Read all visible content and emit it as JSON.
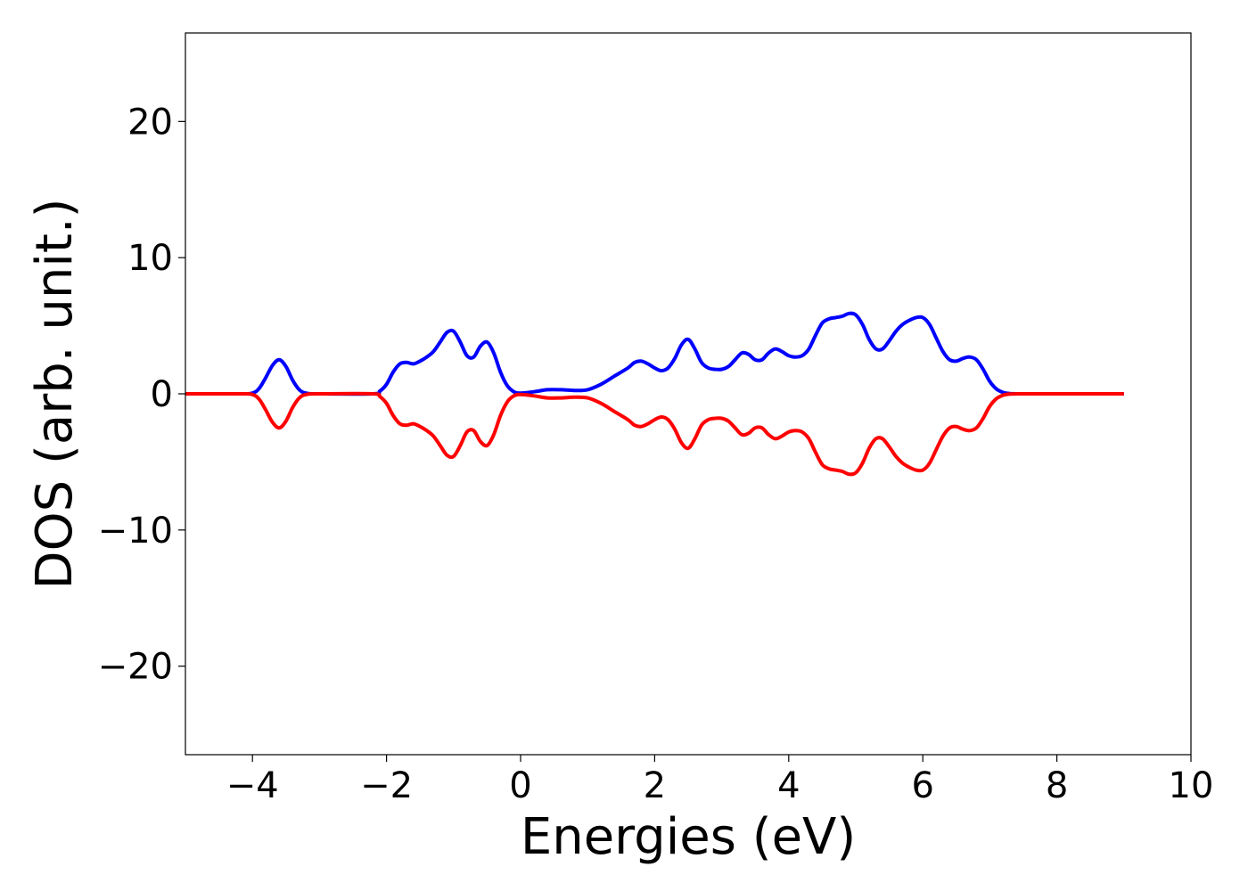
{
  "chart_data": {
    "type": "line",
    "title": "",
    "xlabel": "Energies (eV)",
    "ylabel": "DOS (arb. unit.)",
    "xlim": [
      -5,
      10
    ],
    "ylim": [
      -26.5,
      26.5
    ],
    "xticks": [
      -4,
      -2,
      0,
      2,
      4,
      6,
      8,
      10
    ],
    "yticks": [
      -20,
      -10,
      0,
      10,
      20
    ],
    "xtick_labels": [
      "−4",
      "−2",
      "0",
      "2",
      "4",
      "6",
      "8",
      "10"
    ],
    "ytick_labels": [
      "−20",
      "−10",
      "0",
      "10",
      "20"
    ],
    "grid": false,
    "legend": "none",
    "series": [
      {
        "color": "#0000ff",
        "x": [
          -5.0,
          -4.2,
          -4.0,
          -3.9,
          -3.8,
          -3.7,
          -3.6,
          -3.5,
          -3.4,
          -3.3,
          -3.2,
          -3.0,
          -2.2,
          -2.1,
          -2.0,
          -1.9,
          -1.8,
          -1.7,
          -1.6,
          -1.5,
          -1.4,
          -1.3,
          -1.2,
          -1.1,
          -1.0,
          -0.9,
          -0.8,
          -0.7,
          -0.6,
          -0.5,
          -0.4,
          -0.3,
          -0.2,
          -0.1,
          0.0,
          0.2,
          0.4,
          0.6,
          0.8,
          1.0,
          1.2,
          1.4,
          1.6,
          1.7,
          1.8,
          1.9,
          2.0,
          2.1,
          2.2,
          2.3,
          2.4,
          2.5,
          2.6,
          2.7,
          2.8,
          2.9,
          3.0,
          3.1,
          3.2,
          3.3,
          3.4,
          3.5,
          3.6,
          3.7,
          3.8,
          3.9,
          4.0,
          4.1,
          4.2,
          4.3,
          4.4,
          4.5,
          4.6,
          4.7,
          4.8,
          4.9,
          5.0,
          5.1,
          5.2,
          5.3,
          5.4,
          5.5,
          5.6,
          5.7,
          5.8,
          5.9,
          6.0,
          6.1,
          6.2,
          6.3,
          6.4,
          6.5,
          6.6,
          6.7,
          6.8,
          6.9,
          7.0,
          7.1,
          7.2,
          7.3,
          7.5,
          8.0,
          9.0
        ],
        "y": [
          0,
          0,
          0.05,
          0.4,
          1.2,
          2.1,
          2.5,
          2.0,
          1.0,
          0.3,
          0.05,
          0,
          0,
          0.2,
          0.7,
          1.6,
          2.2,
          2.3,
          2.2,
          2.4,
          2.7,
          3.1,
          3.8,
          4.5,
          4.6,
          3.8,
          2.8,
          2.7,
          3.5,
          3.8,
          3.0,
          1.6,
          0.6,
          0.15,
          0.05,
          0.15,
          0.3,
          0.3,
          0.25,
          0.3,
          0.7,
          1.3,
          1.9,
          2.3,
          2.4,
          2.2,
          1.9,
          1.7,
          1.9,
          2.6,
          3.6,
          4.0,
          3.3,
          2.3,
          1.9,
          1.8,
          1.8,
          2.0,
          2.5,
          3.0,
          2.9,
          2.5,
          2.5,
          3.0,
          3.3,
          3.1,
          2.8,
          2.7,
          2.8,
          3.3,
          4.3,
          5.2,
          5.5,
          5.6,
          5.7,
          5.9,
          5.8,
          5.1,
          4.0,
          3.3,
          3.3,
          3.9,
          4.6,
          5.1,
          5.4,
          5.6,
          5.6,
          5.1,
          4.1,
          3.1,
          2.5,
          2.4,
          2.6,
          2.7,
          2.5,
          1.8,
          0.9,
          0.35,
          0.1,
          0.02,
          0,
          0,
          0
        ]
      },
      {
        "color": "#ff0000",
        "x": [
          -5.0,
          -4.2,
          -4.0,
          -3.9,
          -3.8,
          -3.7,
          -3.6,
          -3.5,
          -3.4,
          -3.3,
          -3.2,
          -3.0,
          -2.2,
          -2.1,
          -2.0,
          -1.9,
          -1.8,
          -1.7,
          -1.6,
          -1.5,
          -1.4,
          -1.3,
          -1.2,
          -1.1,
          -1.0,
          -0.9,
          -0.8,
          -0.7,
          -0.6,
          -0.5,
          -0.4,
          -0.3,
          -0.2,
          -0.1,
          0.0,
          0.2,
          0.4,
          0.6,
          0.8,
          1.0,
          1.2,
          1.4,
          1.6,
          1.7,
          1.8,
          1.9,
          2.0,
          2.1,
          2.2,
          2.3,
          2.4,
          2.5,
          2.6,
          2.7,
          2.8,
          2.9,
          3.0,
          3.1,
          3.2,
          3.3,
          3.4,
          3.5,
          3.6,
          3.7,
          3.8,
          3.9,
          4.0,
          4.1,
          4.2,
          4.3,
          4.4,
          4.5,
          4.6,
          4.7,
          4.8,
          4.9,
          5.0,
          5.1,
          5.2,
          5.3,
          5.4,
          5.5,
          5.6,
          5.7,
          5.8,
          5.9,
          6.0,
          6.1,
          6.2,
          6.3,
          6.4,
          6.5,
          6.6,
          6.7,
          6.8,
          6.9,
          7.0,
          7.1,
          7.2,
          7.3,
          7.5,
          8.0,
          9.0
        ],
        "y": [
          0,
          0,
          -0.05,
          -0.4,
          -1.2,
          -2.1,
          -2.5,
          -2.0,
          -1.0,
          -0.3,
          -0.05,
          0,
          0,
          -0.2,
          -0.7,
          -1.6,
          -2.2,
          -2.3,
          -2.2,
          -2.4,
          -2.7,
          -3.1,
          -3.8,
          -4.5,
          -4.6,
          -3.8,
          -2.8,
          -2.7,
          -3.5,
          -3.8,
          -3.0,
          -1.6,
          -0.6,
          -0.15,
          -0.05,
          -0.15,
          -0.3,
          -0.3,
          -0.25,
          -0.3,
          -0.7,
          -1.3,
          -1.9,
          -2.3,
          -2.4,
          -2.2,
          -1.9,
          -1.7,
          -1.9,
          -2.6,
          -3.6,
          -4.0,
          -3.3,
          -2.3,
          -1.9,
          -1.8,
          -1.8,
          -2.0,
          -2.5,
          -3.0,
          -2.9,
          -2.5,
          -2.5,
          -3.0,
          -3.3,
          -3.1,
          -2.8,
          -2.7,
          -2.8,
          -3.3,
          -4.3,
          -5.2,
          -5.5,
          -5.6,
          -5.7,
          -5.9,
          -5.8,
          -5.1,
          -4.0,
          -3.3,
          -3.3,
          -3.9,
          -4.6,
          -5.1,
          -5.4,
          -5.6,
          -5.6,
          -5.1,
          -4.1,
          -3.1,
          -2.5,
          -2.4,
          -2.6,
          -2.7,
          -2.5,
          -1.8,
          -0.9,
          -0.35,
          -0.1,
          -0.02,
          0,
          0,
          0
        ]
      }
    ]
  }
}
